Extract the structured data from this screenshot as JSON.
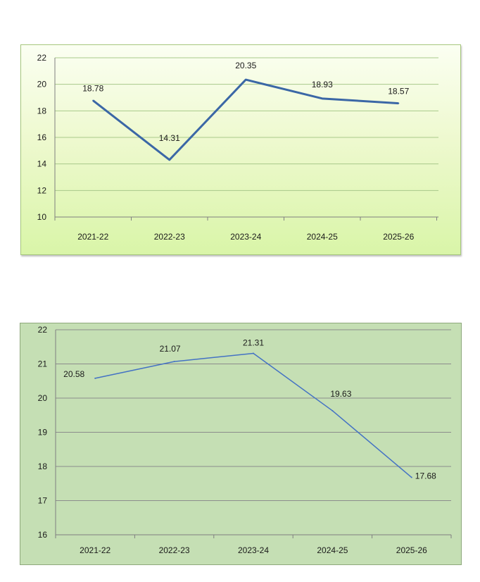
{
  "chart_data": [
    {
      "type": "line",
      "categories": [
        "2021-22",
        "2022-23",
        "2023-24",
        "2024-25",
        "2025-26"
      ],
      "values": [
        18.78,
        14.31,
        20.35,
        18.93,
        18.57
      ],
      "data_labels": [
        "18.78",
        "14.31",
        "20.35",
        "18.93",
        "18.57"
      ],
      "y_ticks": [
        "10",
        "12",
        "14",
        "16",
        "18",
        "20",
        "22"
      ],
      "ylim": [
        10,
        22
      ],
      "grid": true,
      "legend": "none",
      "colors": {
        "line": "#3b67a6",
        "grid": "#a9c98a",
        "axis": "#7f7f7f"
      }
    },
    {
      "type": "line",
      "categories": [
        "2021-22",
        "2022-23",
        "2023-24",
        "2024-25",
        "2025-26"
      ],
      "values": [
        20.58,
        21.07,
        21.31,
        19.63,
        17.68
      ],
      "data_labels": [
        "20.58",
        "21.07",
        "21.31",
        "19.63",
        "17.68"
      ],
      "y_ticks": [
        "16",
        "17",
        "18",
        "19",
        "20",
        "21",
        "22"
      ],
      "ylim": [
        16,
        22
      ],
      "grid": true,
      "legend": "none",
      "colors": {
        "line": "#4472c4",
        "grid": "#8c8c8c",
        "axis": "#7f7f7f"
      }
    }
  ]
}
